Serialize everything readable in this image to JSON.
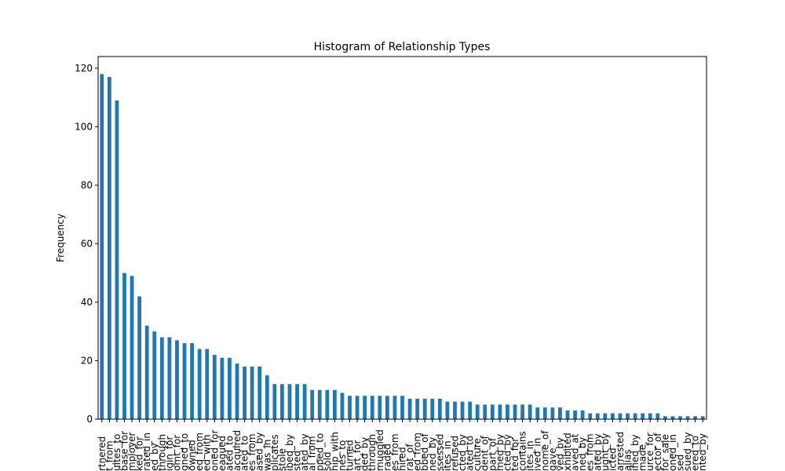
{
  "chart_data": {
    "type": "bar",
    "title": "Histogram of Relationship Types",
    "ylabel": "Frequency",
    "categories": [
      "rtnered",
      "t_from",
      "uites_to",
      "base_for",
      "mployer",
      "ked_for",
      "rated_in",
      "ed_by",
      "through",
      "igin_for",
      "omt_for",
      "gned_to",
      "owned",
      "ed_from",
      "ed_with",
      "oned_for",
      "eagued",
      "ated_to",
      "acquired",
      "ated_to",
      "es_from",
      "ased_by",
      "was_in",
      "plicates",
      "stole",
      "ibed_by",
      "sted",
      "ated_by",
      "al_from",
      "pped_to",
      "sold",
      "hip_with",
      "nes_to",
      "turned",
      "art_for",
      "ded_by",
      "through",
      "muggled",
      "raded",
      "es_from",
      "hired",
      "rat_of",
      "ed_from",
      "bbed_of",
      "ned_by",
      "ssessed",
      "ites_in",
      "refused",
      "cted_by",
      "ated_to",
      "culture",
      "dent_of",
      "part_of",
      "med_by",
      "cted_by",
      "ted_for",
      "contains",
      "ites_in",
      "ived_in",
      "nome_of",
      "gave",
      "ved_by",
      "xhibited",
      "aved_at",
      "ned_by",
      "es_from",
      "ated_by",
      "ught_by",
      "icted",
      "arrested",
      "alias",
      "ified_by",
      "made",
      "urce_for",
      "ector_of",
      "for_sale",
      "oned_in",
      "sed",
      "sued_by",
      "ered_to",
      "nted_by"
    ],
    "values": [
      118,
      117,
      109,
      50,
      49,
      42,
      32,
      30,
      28,
      28,
      27,
      26,
      26,
      24,
      24,
      22,
      21,
      21,
      19,
      18,
      18,
      18,
      15,
      12,
      12,
      12,
      12,
      12,
      10,
      10,
      10,
      10,
      9,
      8,
      8,
      8,
      8,
      8,
      8,
      8,
      8,
      7,
      7,
      7,
      7,
      7,
      6,
      6,
      6,
      6,
      5,
      5,
      5,
      5,
      5,
      5,
      5,
      5,
      4,
      4,
      4,
      4,
      3,
      3,
      3,
      2,
      2,
      2,
      2,
      2,
      2,
      2,
      2,
      2,
      2,
      1,
      1,
      1,
      1,
      1,
      1
    ],
    "color": "#1f77b4",
    "ylim": [
      0,
      124
    ],
    "yticks": [
      0,
      20,
      40,
      60,
      80,
      100,
      120
    ],
    "grid": false
  }
}
